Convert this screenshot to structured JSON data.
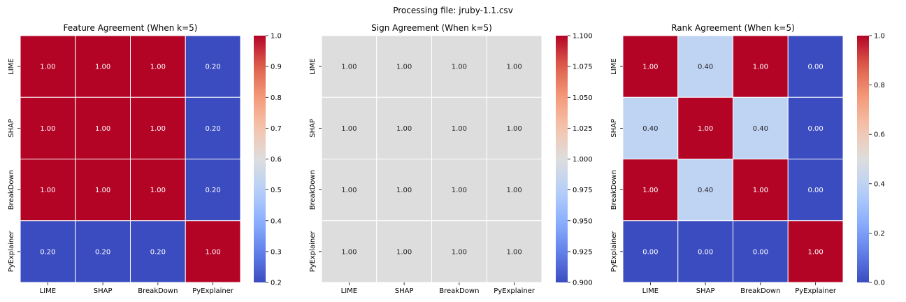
{
  "suptitle": "Processing file: jruby-1.1.csv",
  "chart_data": [
    {
      "type": "heatmap",
      "title": "Feature Agreement (When k=5)",
      "x_labels": [
        "LIME",
        "SHAP",
        "BreakDown",
        "PyExplainer"
      ],
      "y_labels": [
        "LIME",
        "SHAP",
        "BreakDown",
        "PyExplainer"
      ],
      "values": [
        [
          1.0,
          1.0,
          1.0,
          0.2
        ],
        [
          1.0,
          1.0,
          1.0,
          0.2
        ],
        [
          1.0,
          1.0,
          1.0,
          0.2
        ],
        [
          0.2,
          0.2,
          0.2,
          1.0
        ]
      ],
      "cell_labels": [
        [
          "1.00",
          "1.00",
          "1.00",
          "0.20"
        ],
        [
          "1.00",
          "1.00",
          "1.00",
          "0.20"
        ],
        [
          "1.00",
          "1.00",
          "1.00",
          "0.20"
        ],
        [
          "0.20",
          "0.20",
          "0.20",
          "1.00"
        ]
      ],
      "colormap": "coolwarm",
      "vmin": 0.2,
      "vmax": 1.0,
      "colorbar_ticks": [
        "0.2",
        "0.3",
        "0.4",
        "0.5",
        "0.6",
        "0.7",
        "0.8",
        "0.9",
        "1.0"
      ]
    },
    {
      "type": "heatmap",
      "title": "Sign Agreement (When k=5)",
      "x_labels": [
        "LIME",
        "SHAP",
        "BreakDown",
        "PyExplainer"
      ],
      "y_labels": [
        "LIME",
        "SHAP",
        "BreakDown",
        "PyExplainer"
      ],
      "values": [
        [
          1.0,
          1.0,
          1.0,
          1.0
        ],
        [
          1.0,
          1.0,
          1.0,
          1.0
        ],
        [
          1.0,
          1.0,
          1.0,
          1.0
        ],
        [
          1.0,
          1.0,
          1.0,
          1.0
        ]
      ],
      "cell_labels": [
        [
          "1.00",
          "1.00",
          "1.00",
          "1.00"
        ],
        [
          "1.00",
          "1.00",
          "1.00",
          "1.00"
        ],
        [
          "1.00",
          "1.00",
          "1.00",
          "1.00"
        ],
        [
          "1.00",
          "1.00",
          "1.00",
          "1.00"
        ]
      ],
      "colormap": "coolwarm",
      "vmin": 0.9,
      "vmax": 1.1,
      "colorbar_ticks": [
        "0.900",
        "0.925",
        "0.950",
        "0.975",
        "1.000",
        "1.025",
        "1.050",
        "1.075",
        "1.100"
      ]
    },
    {
      "type": "heatmap",
      "title": "Rank Agreement (When k=5)",
      "x_labels": [
        "LIME",
        "SHAP",
        "BreakDown",
        "PyExplainer"
      ],
      "y_labels": [
        "LIME",
        "SHAP",
        "BreakDown",
        "PyExplainer"
      ],
      "values": [
        [
          1.0,
          0.4,
          1.0,
          0.0
        ],
        [
          0.4,
          1.0,
          0.4,
          0.0
        ],
        [
          1.0,
          0.4,
          1.0,
          0.0
        ],
        [
          0.0,
          0.0,
          0.0,
          1.0
        ]
      ],
      "cell_labels": [
        [
          "1.00",
          "0.40",
          "1.00",
          "0.00"
        ],
        [
          "0.40",
          "1.00",
          "0.40",
          "0.00"
        ],
        [
          "1.00",
          "0.40",
          "1.00",
          "0.00"
        ],
        [
          "0.00",
          "0.00",
          "0.00",
          "1.00"
        ]
      ],
      "colormap": "coolwarm",
      "vmin": 0.0,
      "vmax": 1.0,
      "colorbar_ticks": [
        "0.0",
        "0.2",
        "0.4",
        "0.6",
        "0.8",
        "1.0"
      ]
    }
  ]
}
